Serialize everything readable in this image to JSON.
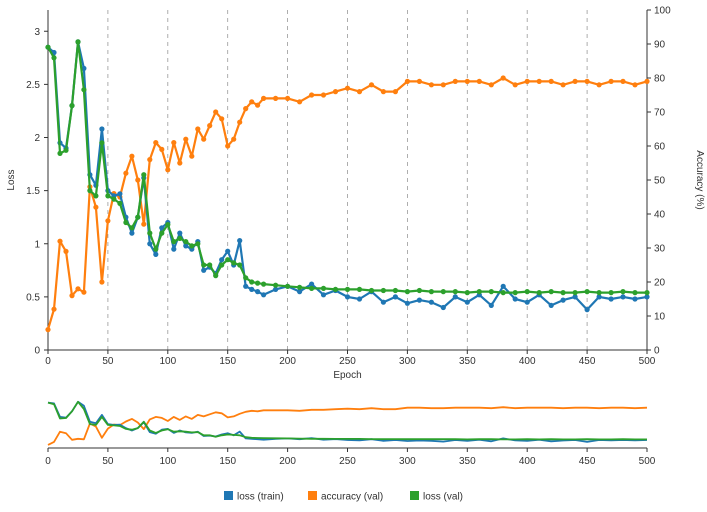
{
  "chart_data": {
    "type": "line",
    "xlabel": "Epoch",
    "ylabel_left": "Loss",
    "ylabel_right": "Accuracy (%)",
    "xlim": [
      0,
      500
    ],
    "ylim_left": [
      0,
      3.2
    ],
    "ylim_right": [
      0,
      100
    ],
    "x_ticks": [
      "0",
      "50",
      "100",
      "150",
      "200",
      "250",
      "300",
      "350",
      "400",
      "450",
      "500"
    ],
    "y_left_ticks": [
      "0",
      "0.5",
      "1",
      "1.5",
      "2",
      "2.5",
      "3"
    ],
    "y_right_ticks": [
      "0",
      "10",
      "20",
      "30",
      "40",
      "50",
      "60",
      "70",
      "80",
      "90",
      "100"
    ],
    "grid": "vertical dashed lines at x ticks",
    "colors": {
      "train": "#1f77b4",
      "accuracy": "#ff7f0e",
      "val": "#2ca02c"
    },
    "legend": [
      "loss (train)",
      "accuracy (val)",
      "loss (val)"
    ],
    "legend_position": "bottom-center",
    "series": [
      {
        "name": "loss (train)",
        "axis": "left",
        "color": "#1f77b4",
        "x": [
          0,
          5,
          10,
          15,
          20,
          25,
          30,
          35,
          40,
          45,
          50,
          55,
          60,
          65,
          70,
          75,
          80,
          85,
          90,
          95,
          100,
          105,
          110,
          115,
          120,
          125,
          130,
          135,
          140,
          145,
          150,
          155,
          160,
          165,
          170,
          175,
          180,
          190,
          200,
          210,
          220,
          230,
          240,
          250,
          260,
          270,
          280,
          290,
          300,
          310,
          320,
          330,
          340,
          350,
          360,
          370,
          380,
          390,
          400,
          410,
          420,
          430,
          440,
          450,
          460,
          470,
          480,
          490,
          500
        ],
        "y": [
          2.85,
          2.8,
          1.95,
          1.9,
          2.3,
          2.9,
          2.65,
          1.65,
          1.55,
          2.08,
          1.5,
          1.45,
          1.47,
          1.25,
          1.1,
          1.25,
          1.62,
          1.0,
          0.9,
          1.15,
          1.2,
          0.95,
          1.1,
          0.98,
          0.95,
          1.02,
          0.75,
          0.78,
          0.72,
          0.85,
          0.93,
          0.8,
          1.03,
          0.6,
          0.57,
          0.55,
          0.52,
          0.57,
          0.6,
          0.55,
          0.62,
          0.52,
          0.56,
          0.5,
          0.48,
          0.55,
          0.45,
          0.5,
          0.44,
          0.47,
          0.45,
          0.4,
          0.5,
          0.45,
          0.52,
          0.42,
          0.6,
          0.48,
          0.45,
          0.52,
          0.42,
          0.47,
          0.5,
          0.38,
          0.5,
          0.48,
          0.5,
          0.48,
          0.5
        ]
      },
      {
        "name": "accuracy (val)",
        "axis": "right",
        "color": "#ff7f0e",
        "x": [
          0,
          5,
          10,
          15,
          20,
          25,
          30,
          35,
          40,
          45,
          50,
          55,
          60,
          65,
          70,
          75,
          80,
          85,
          90,
          95,
          100,
          105,
          110,
          115,
          120,
          125,
          130,
          135,
          140,
          145,
          150,
          155,
          160,
          165,
          170,
          175,
          180,
          190,
          200,
          210,
          220,
          230,
          240,
          250,
          260,
          270,
          280,
          290,
          300,
          310,
          320,
          330,
          340,
          350,
          360,
          370,
          380,
          390,
          400,
          410,
          420,
          430,
          440,
          450,
          460,
          470,
          480,
          490,
          500
        ],
        "y": [
          6,
          12,
          32,
          29,
          16,
          18,
          17,
          48,
          42,
          20,
          38,
          46,
          45,
          52,
          57,
          50,
          37,
          56,
          61,
          59,
          53,
          61,
          55,
          62,
          57,
          65,
          62,
          66,
          70,
          68,
          60,
          62,
          67,
          71,
          73,
          72,
          74,
          74,
          74,
          73,
          75,
          75,
          76,
          77,
          76,
          78,
          76,
          76,
          79,
          79,
          78,
          78,
          79,
          79,
          79,
          78,
          80,
          78,
          79,
          79,
          79,
          78,
          79,
          79,
          78,
          79,
          79,
          78,
          79
        ]
      },
      {
        "name": "loss (val)",
        "axis": "left",
        "color": "#2ca02c",
        "x": [
          0,
          5,
          10,
          15,
          20,
          25,
          30,
          35,
          40,
          45,
          50,
          55,
          60,
          65,
          70,
          75,
          80,
          85,
          90,
          95,
          100,
          105,
          110,
          115,
          120,
          125,
          130,
          135,
          140,
          145,
          150,
          155,
          160,
          165,
          170,
          175,
          180,
          190,
          200,
          210,
          220,
          230,
          240,
          250,
          260,
          270,
          280,
          290,
          300,
          310,
          320,
          330,
          340,
          350,
          360,
          370,
          380,
          390,
          400,
          410,
          420,
          430,
          440,
          450,
          460,
          470,
          480,
          490,
          500
        ],
        "y": [
          2.85,
          2.75,
          1.85,
          1.88,
          2.3,
          2.9,
          2.45,
          1.5,
          1.45,
          1.95,
          1.45,
          1.42,
          1.38,
          1.2,
          1.15,
          1.25,
          1.65,
          1.1,
          0.95,
          1.1,
          1.18,
          1.02,
          1.05,
          1.02,
          0.98,
          1.0,
          0.8,
          0.8,
          0.7,
          0.8,
          0.85,
          0.82,
          0.8,
          0.68,
          0.64,
          0.63,
          0.62,
          0.61,
          0.6,
          0.59,
          0.58,
          0.58,
          0.57,
          0.57,
          0.57,
          0.56,
          0.56,
          0.56,
          0.55,
          0.56,
          0.55,
          0.55,
          0.55,
          0.54,
          0.55,
          0.55,
          0.54,
          0.54,
          0.55,
          0.54,
          0.55,
          0.54,
          0.54,
          0.55,
          0.54,
          0.54,
          0.55,
          0.54,
          0.54
        ]
      }
    ]
  }
}
